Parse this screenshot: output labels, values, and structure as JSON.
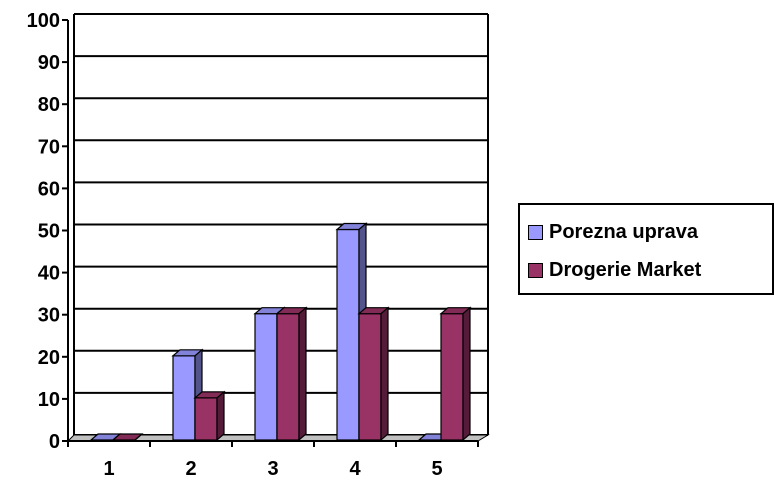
{
  "chart_data": {
    "type": "bar",
    "categories": [
      "1",
      "2",
      "3",
      "4",
      "5"
    ],
    "series": [
      {
        "name": "Porezna uprava",
        "values": [
          0,
          20,
          30,
          50,
          0
        ],
        "color": "#9999ff"
      },
      {
        "name": "Drogerie Market",
        "values": [
          0,
          10,
          30,
          30,
          30
        ],
        "color": "#993366"
      }
    ],
    "ylim": [
      0,
      100
    ],
    "yticks": [
      "0",
      "10",
      "20",
      "30",
      "40",
      "50",
      "60",
      "70",
      "80",
      "90",
      "100"
    ],
    "grid": true,
    "legend_position": "right",
    "style": "3d-clustered-column"
  }
}
